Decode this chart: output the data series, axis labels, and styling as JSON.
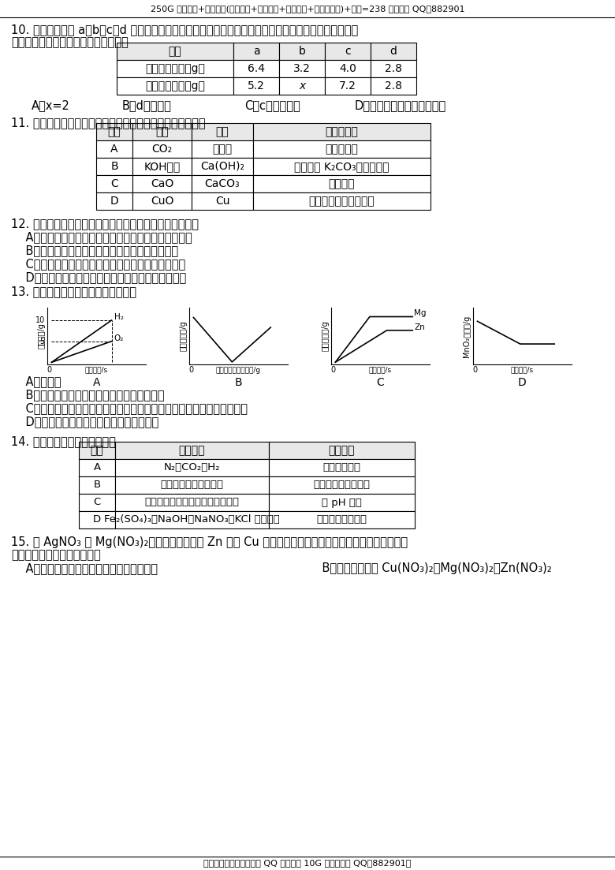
{
  "header": "250G 移动硬盘+教学资源(新课同步+中考备考+实验视频+优质课视频)+邮资=238 元，联系 QQ：882901",
  "footer": "一盘在手，备课无忧！加 QQ 免费领取 10G 资源。联系 QQ：882901。",
  "q10_line1": "10. 把一定质量的 a、b、c、d 四种物质放入一密闭容器中，在一定条件下反应一段时间后，测得反应后各",
  "q10_line2": "物质的质量如下。下列说法中正确的是",
  "q10_headers": [
    "物质",
    "a",
    "b",
    "c",
    "d"
  ],
  "q10_row1": [
    "反应前的质量（g）",
    "6.4",
    "3.2",
    "4.0",
    "2.8"
  ],
  "q10_row2": [
    "反应后的质量（g）",
    "5.2",
    "x",
    "7.2",
    "2.8"
  ],
  "q10_opts_A": "A．x=2",
  "q10_opts_B": "B．d是催化剂",
  "q10_opts_C": "C．c不是化合物",
  "q10_opts_D": "D．反应前后原子的数目不变",
  "q11_line1": "11. 除去下列物质中所含的杂质，所用的试剂和方法正确的是",
  "q11_headers": [
    "选项",
    "物质",
    "杂质",
    "试剂和方法"
  ],
  "q11_colA": [
    "A",
    "B",
    "C",
    "D"
  ],
  "q11_colB": [
    "CO₂",
    "KOH溶液",
    "CaO",
    "CuO"
  ],
  "q11_colC": [
    "水蒸气",
    "Ca(OH)₂",
    "CaCO₃",
    "Cu"
  ],
  "q11_colD": [
    "通过碱石灰",
    "加入过量 K₂CO₃溶液，过滤",
    "高温煅烧",
    "加入适量稀硫酸，过滤"
  ],
  "q12_line1": "12. 根据你的化学知识和生活经验判断，下列说法正确的是",
  "q12_A": "    A．纸签着火用水浇灭，因为水能降低可燃物的着火点",
  "q12_B": "    B．小苏打治疗胃酸过多，因为小苏打能中和盐酸",
  "q12_C": "    C．铁粉作食品保鲜剂，因为铁粉能与氧气和水反应",
  "q12_D": "    D．生铁和钢的性能不同，因为生铁的含碳量比钢少",
  "q13_line1": "13. 下列图像能正确反映实验操作的是",
  "q13_A": "    A．电解水",
  "q13_B": "    B．向一定量稀硫酸中不断加入氢氧化钡溶液",
  "q13_C": "    C．向两份等质量、相同质量分数的稀硫酸中，分别不断加入镁粉和锌粉",
  "q13_D": "    D．用氯酸钾和二氧化锰混合加热制取氧气",
  "q13_gA_ylabel": "气体质量/g",
  "q13_gA_xlabel": "反应时间/s",
  "q13_gB_ylabel": "溶质的质量/g",
  "q13_gB_xlabel": "加氢氧化钡溶液质量/g",
  "q13_gC_ylabel": "氢气的质量/g",
  "q13_gC_xlabel": "反应时间/s",
  "q13_gD_ylabel": "MnO₂的质量/g",
  "q13_gD_xlabel": "反应时间/s",
  "q14_line1": "14. 下列物质鉴别方案正确的是",
  "q14_headers": [
    "选项",
    "鉴别物质",
    "实验方案"
  ],
  "q14_colA": [
    "A",
    "B",
    "C",
    "D"
  ],
  "q14_colB": [
    "N₂、CO₂、H₂",
    "尿素、氯化铵、硝酸铵",
    "稀盐酸、碳酸钠溶液、氯化钠溶液",
    "Fe₂(SO₄)₃、NaOH、NaNO₃、KCl 四种溶液"
  ],
  "q14_colC": [
    "用燃着的木条",
    "加热石灰研磨闻气味",
    "用 pH 试纸",
    "仅用组内物质鉴别"
  ],
  "q15_line1": "15. 向 AgNO₃ 和 Mg(NO₃)₂溶液中加入一定量 Zn 粉和 Cu 粉，充分反应后过滤，得到滤渣和蓝色滤液。关",
  "q15_line2": "于该滤渣和滤液说法正确的是",
  "q15_A": "    A．向滤渣中加入稀盐酸，可能有气泡产生",
  "q15_B": "    B．滤液中一定有 Cu(NO₃)₂、Mg(NO₃)₂、Zn(NO₃)₂"
}
